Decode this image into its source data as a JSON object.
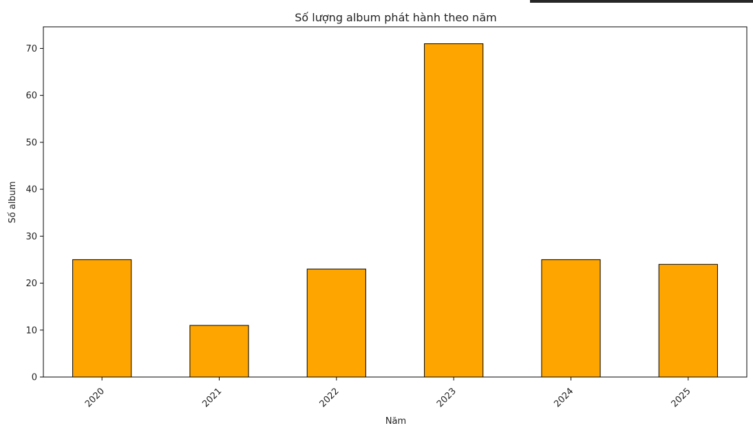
{
  "chart_data": {
    "type": "bar",
    "title": "Số lượng album phát hành theo năm",
    "xlabel": "Năm",
    "ylabel": "Số album",
    "categories": [
      "2020",
      "2021",
      "2022",
      "2023",
      "2024",
      "2025"
    ],
    "values": [
      25,
      11,
      23,
      71,
      25,
      24
    ],
    "ylim": [
      0,
      74.6
    ],
    "yticks": [
      0,
      10,
      20,
      30,
      40,
      50,
      60,
      70
    ],
    "grid": false,
    "bar_color": "#FFA500",
    "edge_color": "#000000"
  }
}
